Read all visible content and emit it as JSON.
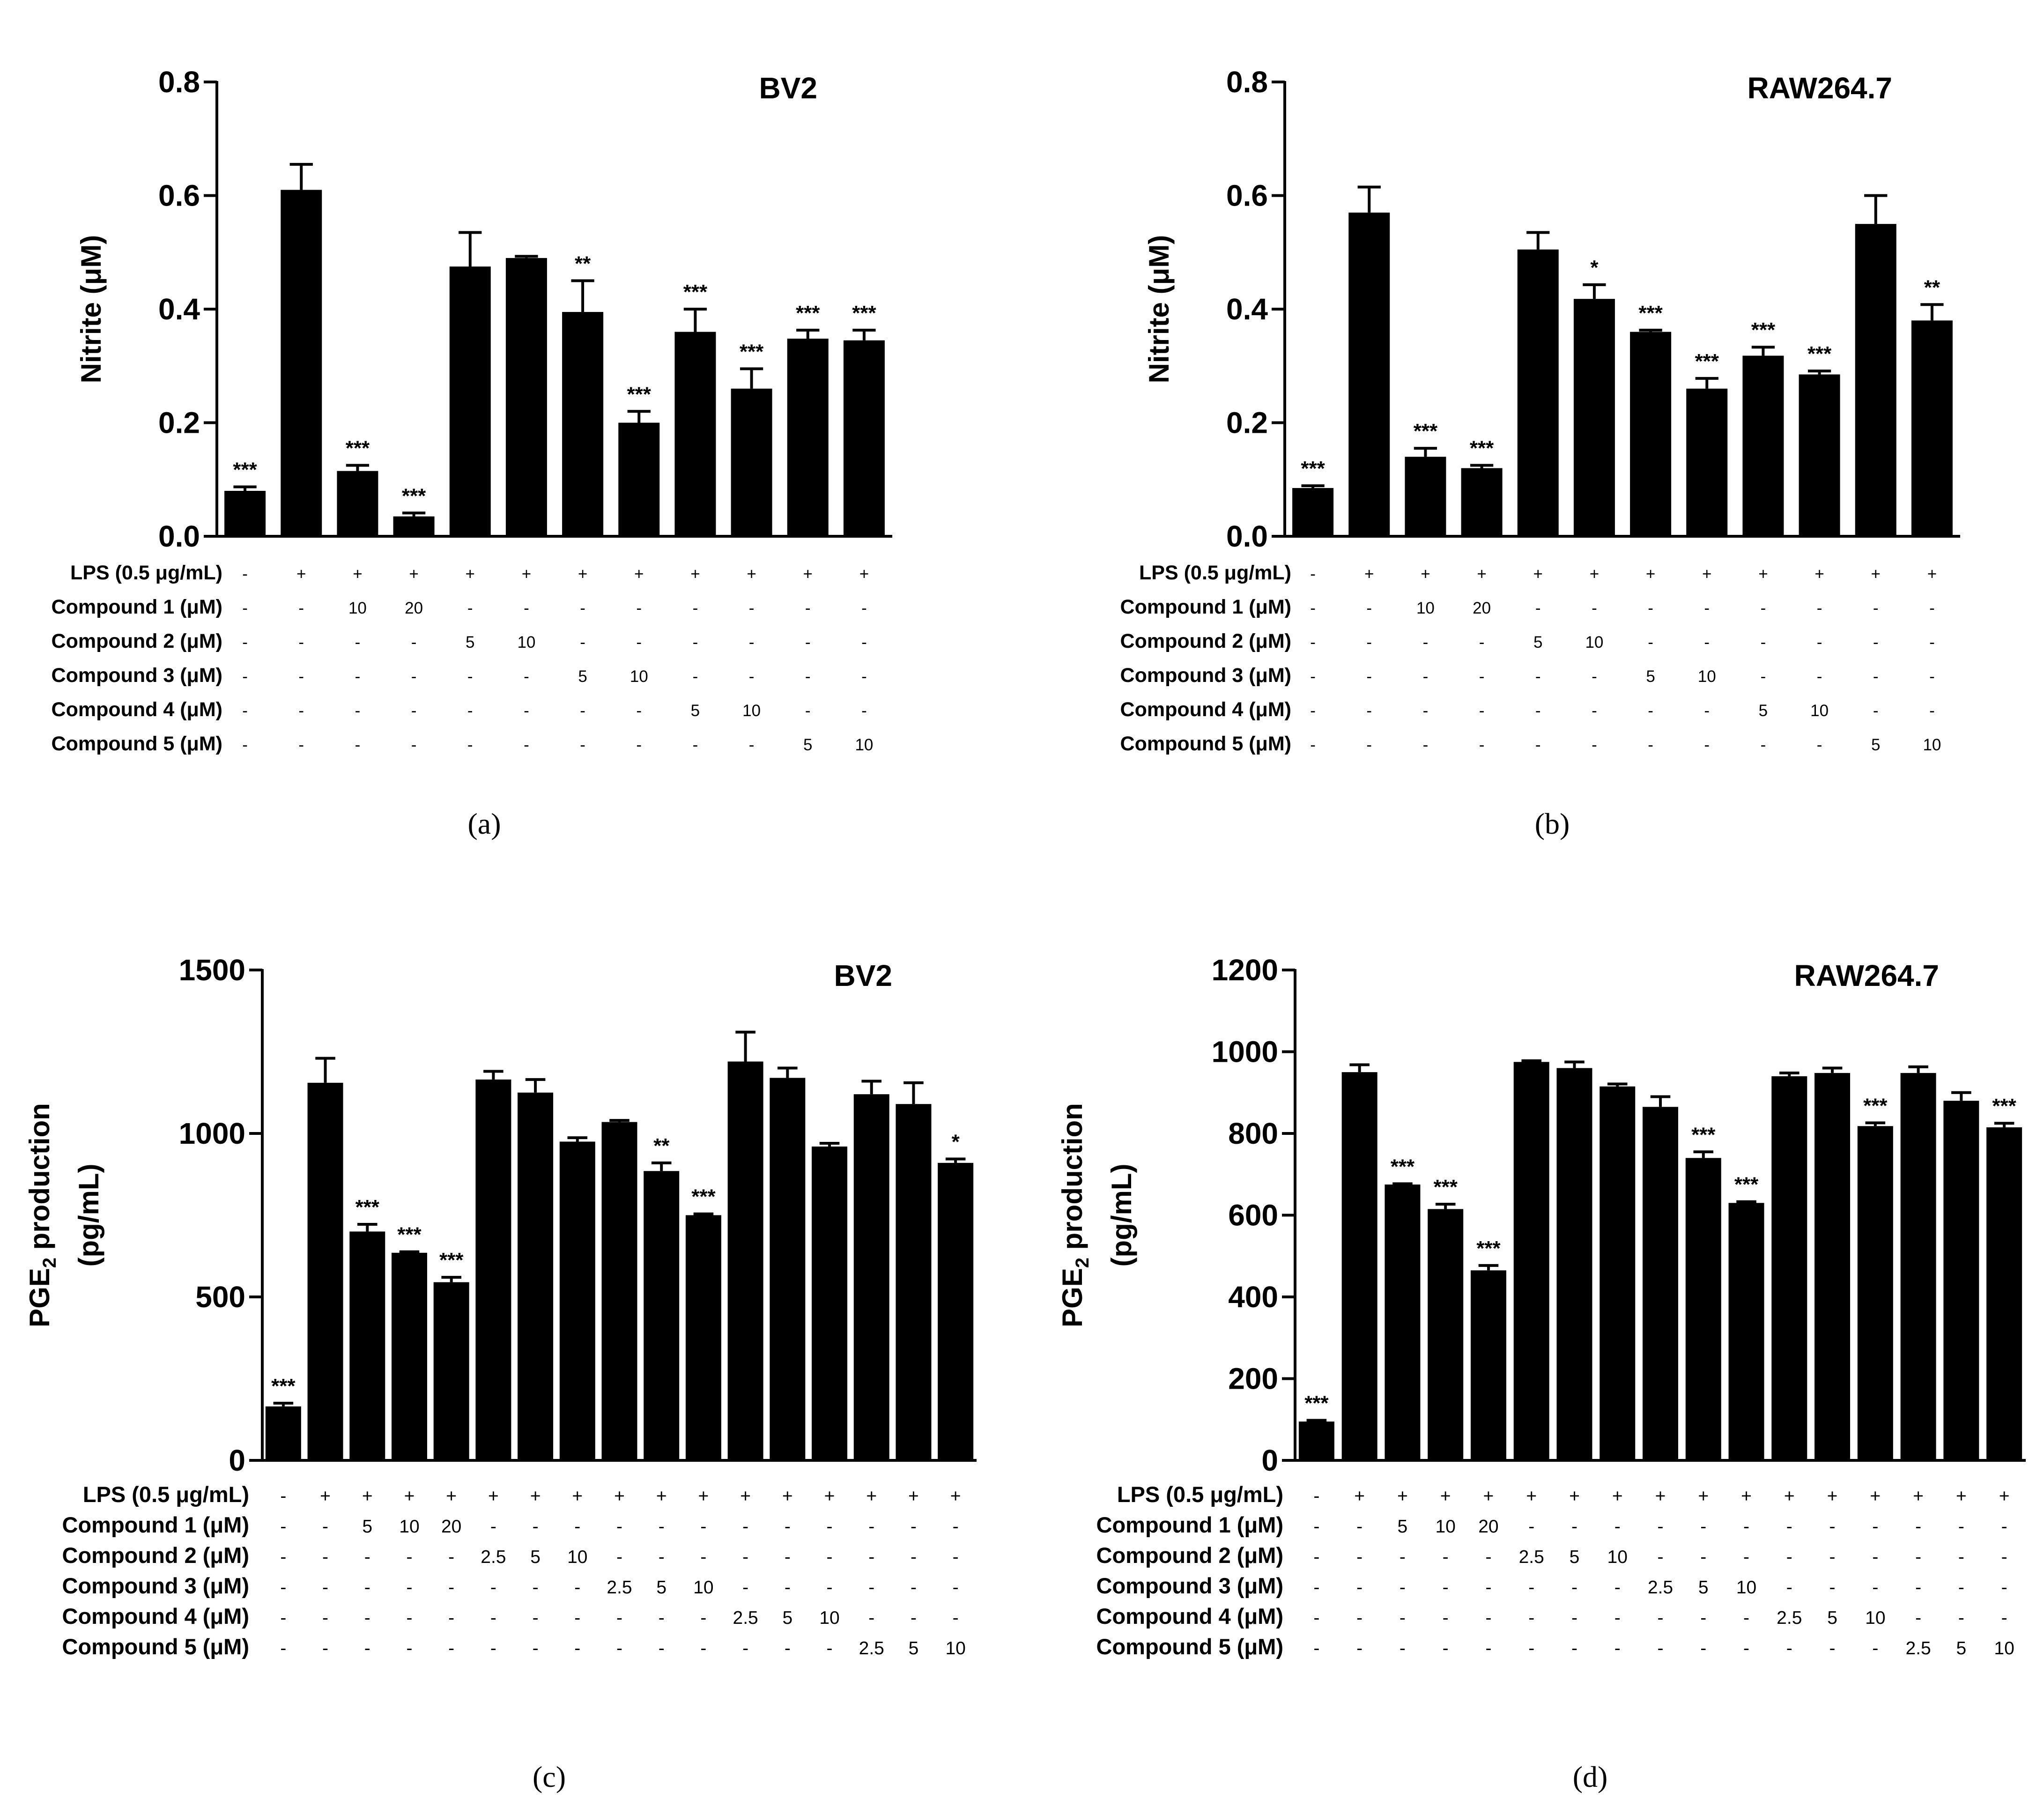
{
  "colors": {
    "bar": "#000000",
    "axis": "#000000",
    "background": "#ffffff"
  },
  "chart_data": [
    {
      "panel_label": "(a)",
      "type": "bar",
      "title": "BV2",
      "ylabel": "Nitrite (μM)",
      "ylim": [
        0,
        0.8
      ],
      "yticks": [
        "0.0",
        "0.2",
        "0.4",
        "0.6",
        "0.8"
      ],
      "values": [
        0.08,
        0.61,
        0.115,
        0.035,
        0.475,
        0.49,
        0.395,
        0.2,
        0.36,
        0.26,
        0.348,
        0.345
      ],
      "errors": [
        0.007,
        0.045,
        0.01,
        0.006,
        0.06,
        0.003,
        0.055,
        0.02,
        0.04,
        0.035,
        0.015,
        0.018
      ],
      "significance": [
        "***",
        "",
        "***",
        "***",
        "",
        "",
        "**",
        "***",
        "***",
        "***",
        "***",
        "***"
      ],
      "conditions": [
        {
          "label": "LPS (0.5 μg/mL)",
          "values": [
            "-",
            "+",
            "+",
            "+",
            "+",
            "+",
            "+",
            "+",
            "+",
            "+",
            "+",
            "+"
          ]
        },
        {
          "label": "Compound 1 (μM)",
          "values": [
            "-",
            "-",
            "10",
            "20",
            "-",
            "-",
            "-",
            "-",
            "-",
            "-",
            "-",
            "-"
          ]
        },
        {
          "label": "Compound 2 (μM)",
          "values": [
            "-",
            "-",
            "-",
            "-",
            "5",
            "10",
            "-",
            "-",
            "-",
            "-",
            "-",
            "-"
          ]
        },
        {
          "label": "Compound 3 (μM)",
          "values": [
            "-",
            "-",
            "-",
            "-",
            "-",
            "-",
            "5",
            "10",
            "-",
            "-",
            "-",
            "-"
          ]
        },
        {
          "label": "Compound 4 (μM)",
          "values": [
            "-",
            "-",
            "-",
            "-",
            "-",
            "-",
            "-",
            "-",
            "5",
            "10",
            "-",
            "-"
          ]
        },
        {
          "label": "Compound 5 (μM)",
          "values": [
            "-",
            "-",
            "-",
            "-",
            "-",
            "-",
            "-",
            "-",
            "-",
            "-",
            "5",
            "10"
          ]
        }
      ]
    },
    {
      "panel_label": "(b)",
      "type": "bar",
      "title": "RAW264.7",
      "ylabel": "Nitrite (μM)",
      "ylim": [
        0,
        0.8
      ],
      "yticks": [
        "0.0",
        "0.2",
        "0.4",
        "0.6",
        "0.8"
      ],
      "values": [
        0.085,
        0.57,
        0.14,
        0.12,
        0.505,
        0.418,
        0.36,
        0.26,
        0.318,
        0.285,
        0.55,
        0.38
      ],
      "errors": [
        0.004,
        0.045,
        0.015,
        0.005,
        0.03,
        0.025,
        0.003,
        0.018,
        0.015,
        0.006,
        0.05,
        0.028
      ],
      "significance": [
        "***",
        "",
        "***",
        "***",
        "",
        "*",
        "***",
        "***",
        "***",
        "***",
        "",
        "**"
      ],
      "conditions": [
        {
          "label": "LPS (0.5 μg/mL)",
          "values": [
            "-",
            "+",
            "+",
            "+",
            "+",
            "+",
            "+",
            "+",
            "+",
            "+",
            "+",
            "+"
          ]
        },
        {
          "label": "Compound 1 (μM)",
          "values": [
            "-",
            "-",
            "10",
            "20",
            "-",
            "-",
            "-",
            "-",
            "-",
            "-",
            "-",
            "-"
          ]
        },
        {
          "label": "Compound 2 (μM)",
          "values": [
            "-",
            "-",
            "-",
            "-",
            "5",
            "10",
            "-",
            "-",
            "-",
            "-",
            "-",
            "-"
          ]
        },
        {
          "label": "Compound 3 (μM)",
          "values": [
            "-",
            "-",
            "-",
            "-",
            "-",
            "-",
            "5",
            "10",
            "-",
            "-",
            "-",
            "-"
          ]
        },
        {
          "label": "Compound 4 (μM)",
          "values": [
            "-",
            "-",
            "-",
            "-",
            "-",
            "-",
            "-",
            "-",
            "5",
            "10",
            "-",
            "-"
          ]
        },
        {
          "label": "Compound 5 (μM)",
          "values": [
            "-",
            "-",
            "-",
            "-",
            "-",
            "-",
            "-",
            "-",
            "-",
            "-",
            "5",
            "10"
          ]
        }
      ]
    },
    {
      "panel_label": "(c)",
      "type": "bar",
      "title": "BV2",
      "ylabel_main": "PGE",
      "ylabel_sub": "2",
      "ylabel_rest": " production",
      "ylabel_line2": "(pg/mL)",
      "ylim": [
        0,
        1500
      ],
      "yticks": [
        "0",
        "500",
        "1000",
        "1500"
      ],
      "values": [
        165,
        1155,
        700,
        635,
        545,
        1165,
        1125,
        975,
        1035,
        885,
        750,
        1220,
        1170,
        960,
        1120,
        1090,
        910
      ],
      "errors": [
        10,
        75,
        22,
        3,
        15,
        25,
        40,
        12,
        5,
        25,
        4,
        90,
        30,
        10,
        40,
        65,
        12
      ],
      "significance": [
        "***",
        "",
        "***",
        "***",
        "***",
        "",
        "",
        "",
        "",
        "**",
        "***",
        "",
        "",
        "",
        "",
        "",
        "*"
      ],
      "conditions": [
        {
          "label": "LPS (0.5 μg/mL)",
          "values": [
            "-",
            "+",
            "+",
            "+",
            "+",
            "+",
            "+",
            "+",
            "+",
            "+",
            "+",
            "+",
            "+",
            "+",
            "+",
            "+",
            "+"
          ]
        },
        {
          "label": "Compound 1 (μM)",
          "values": [
            "-",
            "-",
            "5",
            "10",
            "20",
            "-",
            "-",
            "-",
            "-",
            "-",
            "-",
            "-",
            "-",
            "-",
            "-",
            "-",
            "-"
          ]
        },
        {
          "label": "Compound 2 (μM)",
          "values": [
            "-",
            "-",
            "-",
            "-",
            "-",
            "2.5",
            "5",
            "10",
            "-",
            "-",
            "-",
            "-",
            "-",
            "-",
            "-",
            "-",
            "-"
          ]
        },
        {
          "label": "Compound 3 (μM)",
          "values": [
            "-",
            "-",
            "-",
            "-",
            "-",
            "-",
            "-",
            "-",
            "2.5",
            "5",
            "10",
            "-",
            "-",
            "-",
            "-",
            "-",
            "-"
          ]
        },
        {
          "label": "Compound 4 (μM)",
          "values": [
            "-",
            "-",
            "-",
            "-",
            "-",
            "-",
            "-",
            "-",
            "-",
            "-",
            "-",
            "2.5",
            "5",
            "10",
            "-",
            "-",
            "-"
          ]
        },
        {
          "label": "Compound 5 (μM)",
          "values": [
            "-",
            "-",
            "-",
            "-",
            "-",
            "-",
            "-",
            "-",
            "-",
            "-",
            "-",
            "-",
            "-",
            "-",
            "2.5",
            "5",
            "10"
          ]
        }
      ]
    },
    {
      "panel_label": "(d)",
      "type": "bar",
      "title": "RAW264.7",
      "ylabel_main": "PGE",
      "ylabel_sub": "2",
      "ylabel_rest": " production",
      "ylabel_line2": "(pg/mL)",
      "ylim": [
        0,
        1200
      ],
      "yticks": [
        "0",
        "200",
        "400",
        "600",
        "800",
        "1000",
        "1200"
      ],
      "values": [
        95,
        950,
        675,
        615,
        465,
        975,
        960,
        915,
        865,
        740,
        630,
        940,
        948,
        818,
        948,
        880,
        815
      ],
      "errors": [
        3,
        18,
        2,
        12,
        12,
        3,
        15,
        6,
        25,
        15,
        3,
        8,
        12,
        8,
        15,
        20,
        10
      ],
      "significance": [
        "***",
        "",
        "***",
        "***",
        "***",
        "",
        "",
        "",
        "",
        "***",
        "***",
        "",
        "",
        "***",
        "",
        "",
        "***"
      ],
      "conditions": [
        {
          "label": "LPS (0.5 μg/mL)",
          "values": [
            "-",
            "+",
            "+",
            "+",
            "+",
            "+",
            "+",
            "+",
            "+",
            "+",
            "+",
            "+",
            "+",
            "+",
            "+",
            "+",
            "+"
          ]
        },
        {
          "label": "Compound 1 (μM)",
          "values": [
            "-",
            "-",
            "5",
            "10",
            "20",
            "-",
            "-",
            "-",
            "-",
            "-",
            "-",
            "-",
            "-",
            "-",
            "-",
            "-",
            "-"
          ]
        },
        {
          "label": "Compound 2 (μM)",
          "values": [
            "-",
            "-",
            "-",
            "-",
            "-",
            "2.5",
            "5",
            "10",
            "-",
            "-",
            "-",
            "-",
            "-",
            "-",
            "-",
            "-",
            "-"
          ]
        },
        {
          "label": "Compound 3 (μM)",
          "values": [
            "-",
            "-",
            "-",
            "-",
            "-",
            "-",
            "-",
            "-",
            "2.5",
            "5",
            "10",
            "-",
            "-",
            "-",
            "-",
            "-",
            "-"
          ]
        },
        {
          "label": "Compound 4 (μM)",
          "values": [
            "-",
            "-",
            "-",
            "-",
            "-",
            "-",
            "-",
            "-",
            "-",
            "-",
            "-",
            "2.5",
            "5",
            "10",
            "-",
            "-",
            "-"
          ]
        },
        {
          "label": "Compound 5 (μM)",
          "values": [
            "-",
            "-",
            "-",
            "-",
            "-",
            "-",
            "-",
            "-",
            "-",
            "-",
            "-",
            "-",
            "-",
            "-",
            "2.5",
            "5",
            "10"
          ]
        }
      ]
    }
  ]
}
